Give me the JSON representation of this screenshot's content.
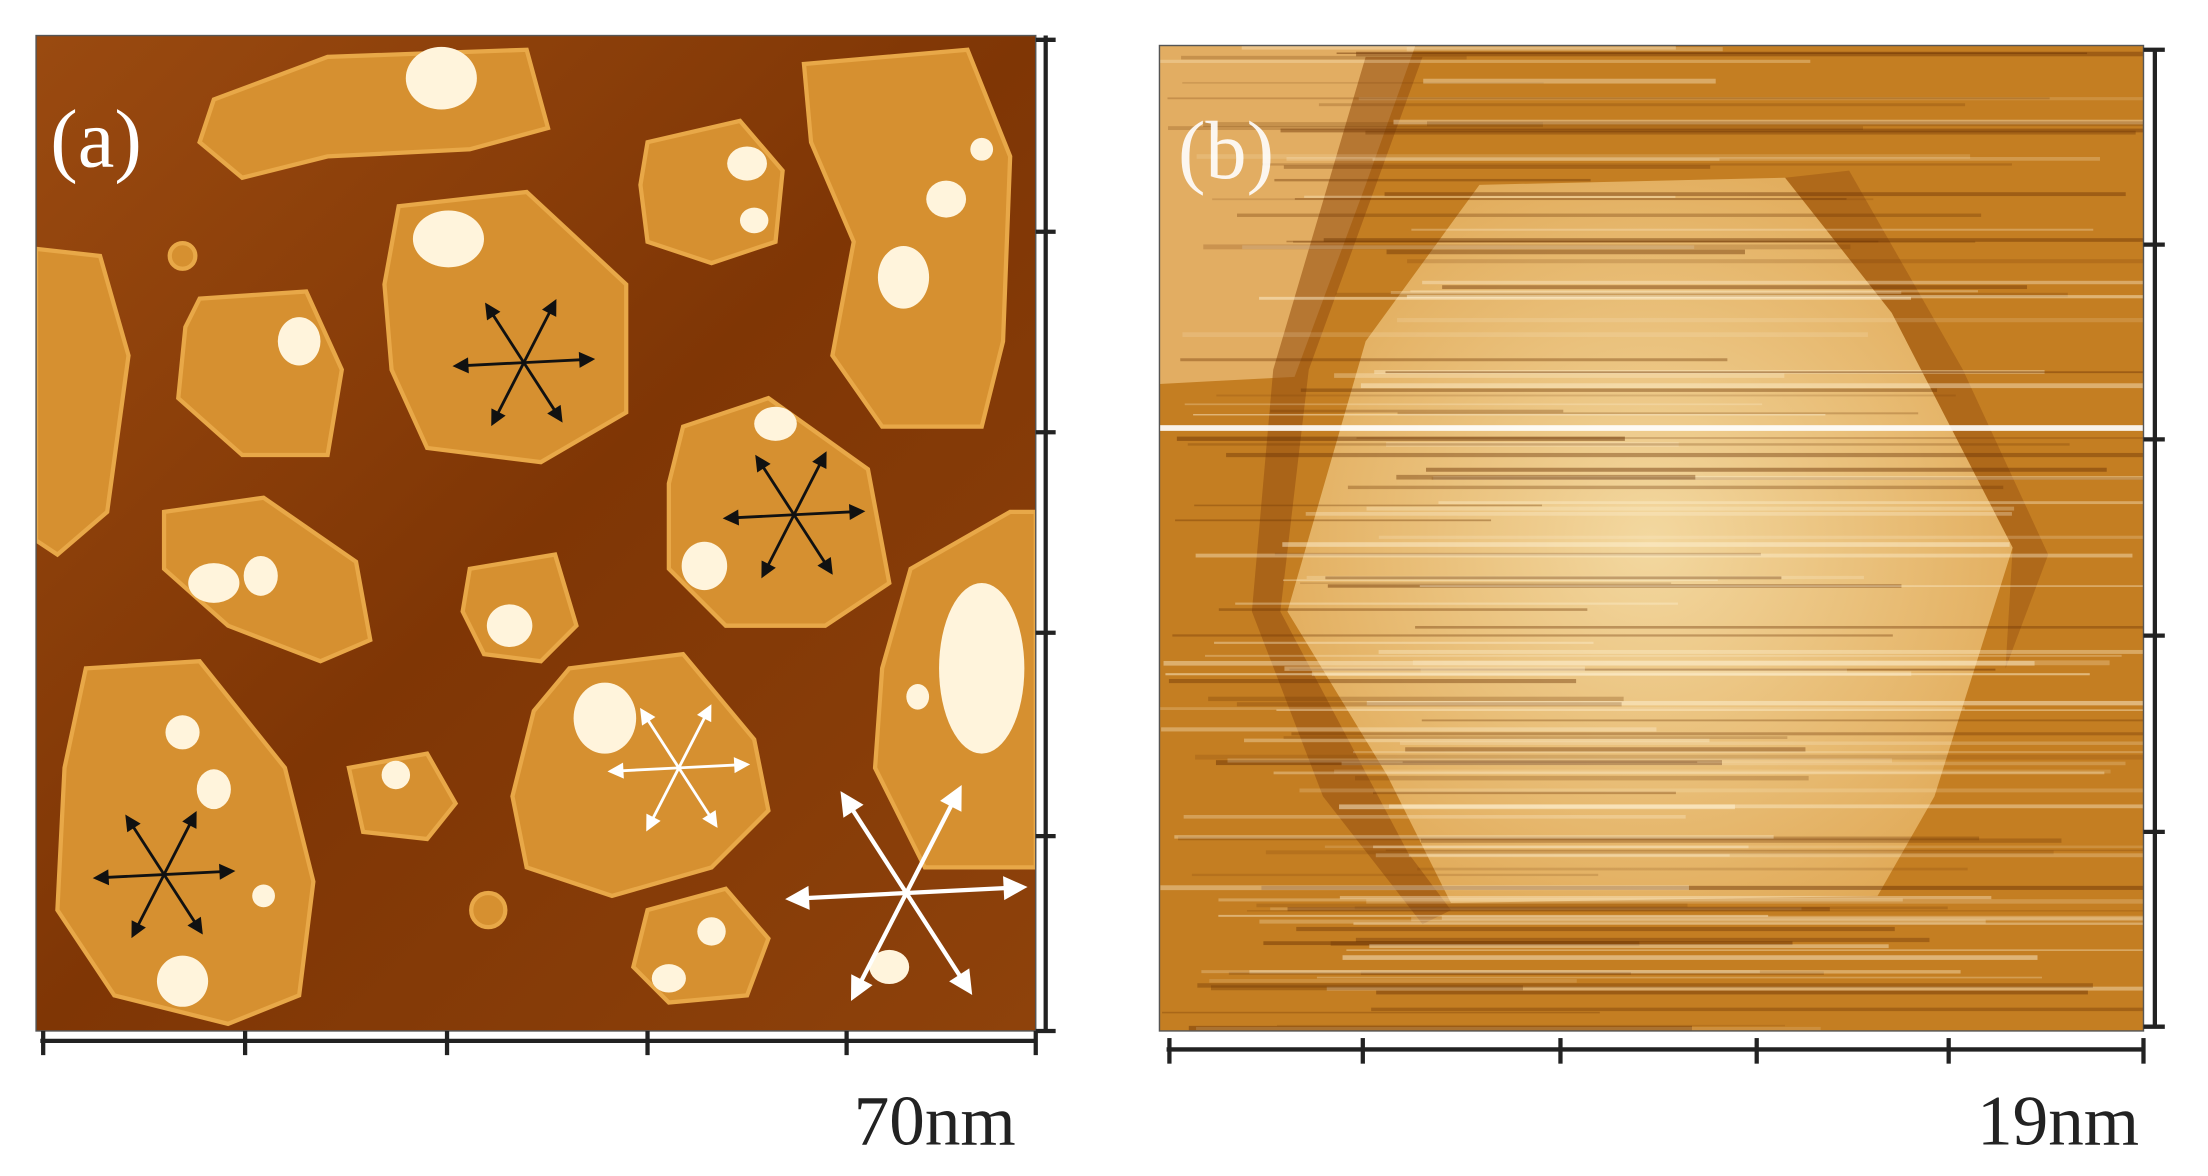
{
  "panels": [
    {
      "label": "(a)",
      "scale": "70nm"
    },
    {
      "label": "(b)",
      "scale": "19nm"
    }
  ]
}
